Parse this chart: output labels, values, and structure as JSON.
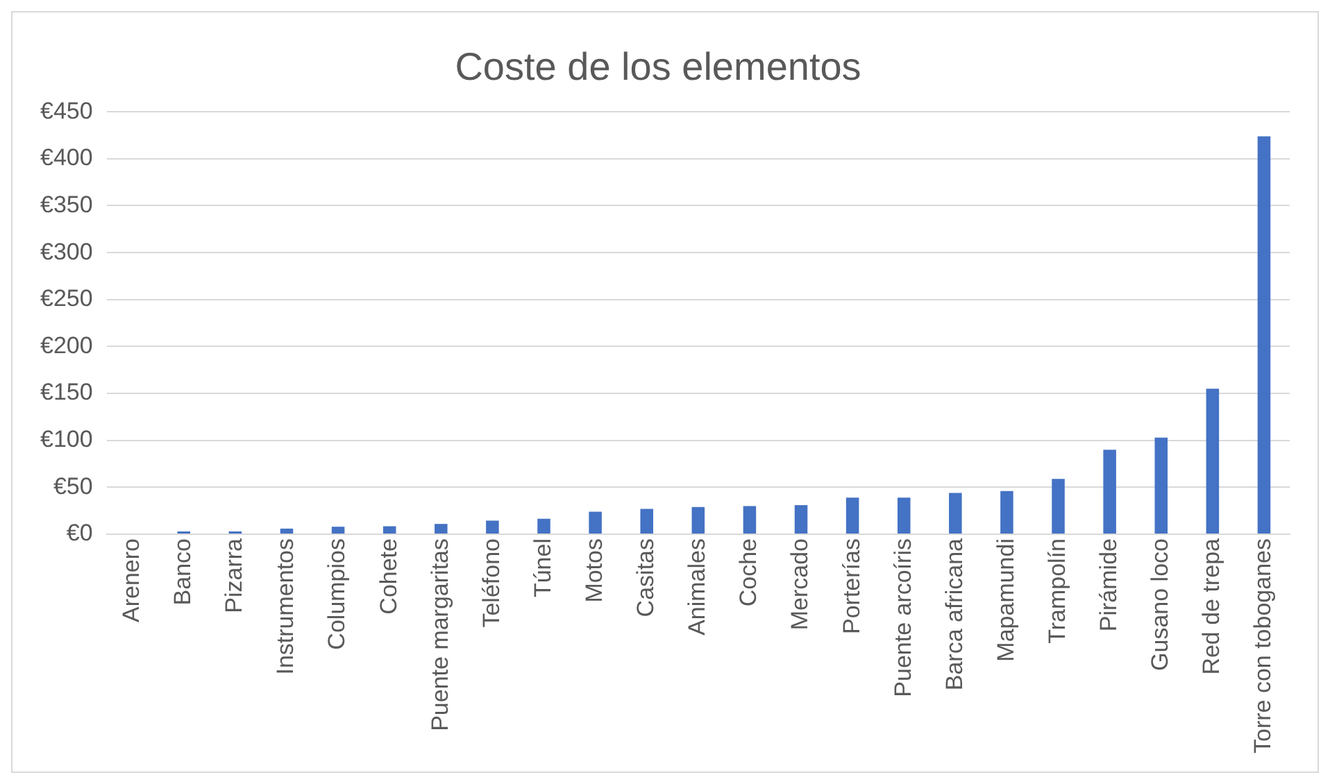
{
  "chart_data": {
    "type": "bar",
    "title": "Coste de los elementos",
    "categories": [
      "Arenero",
      "Banco",
      "Pizarra",
      "Instrumentos",
      "Columpios",
      "Cohete",
      "Puente margaritas",
      "Teléfono",
      "Túnel",
      "Motos",
      "Casitas",
      "Animales",
      "Coche",
      "Mercado",
      "Porterías",
      "Puente arcoíris",
      "Barca africana",
      "Mapamundi",
      "Trampolín",
      "Pirámide",
      "Gusano loco",
      "Red de trepa",
      "Torre con toboganes"
    ],
    "values": [
      0,
      3,
      3,
      6,
      8,
      8.5,
      11,
      14.5,
      16.5,
      24,
      27,
      29,
      30,
      31,
      39,
      39,
      44,
      46,
      59,
      90,
      103,
      155,
      424
    ],
    "color": "#4472c4",
    "ylim": [
      0,
      450
    ],
    "yticks": [
      {
        "value": 0,
        "label": "€0"
      },
      {
        "value": 50,
        "label": "€50"
      },
      {
        "value": 100,
        "label": "€100"
      },
      {
        "value": 150,
        "label": "€150"
      },
      {
        "value": 200,
        "label": "€200"
      },
      {
        "value": 250,
        "label": "€250"
      },
      {
        "value": 300,
        "label": "€300"
      },
      {
        "value": 350,
        "label": "€350"
      },
      {
        "value": 400,
        "label": "€400"
      },
      {
        "value": 450,
        "label": "€450"
      }
    ],
    "grid": "y",
    "legend": false
  }
}
